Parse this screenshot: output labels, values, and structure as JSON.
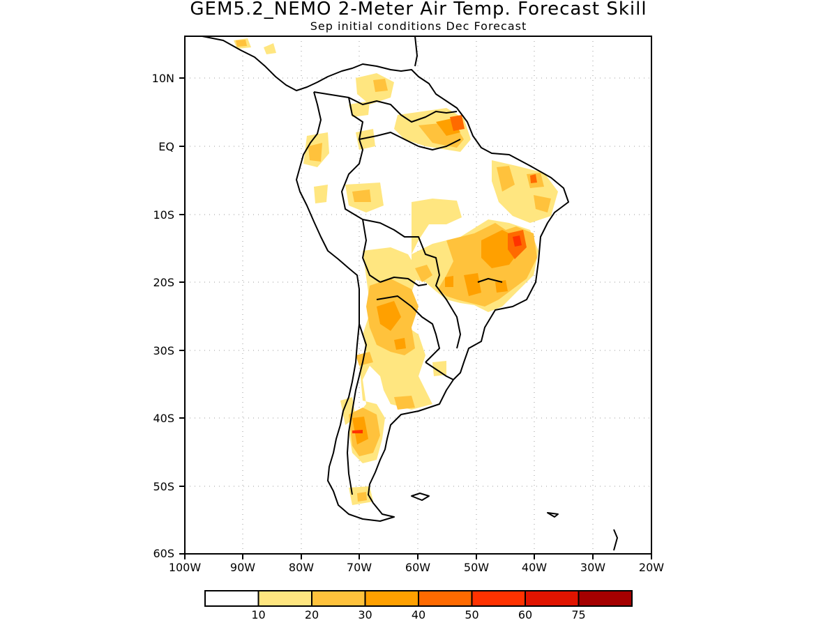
{
  "title": "GEM5.2_NEMO 2-Meter Air Temp. Forecast Skill",
  "subtitle": "Sep initial conditions  Dec Forecast",
  "axes": {
    "lat_labels": [
      "10N",
      "EQ",
      "10S",
      "20S",
      "30S",
      "40S",
      "50S",
      "60S"
    ],
    "lon_labels": [
      "100W",
      "90W",
      "80W",
      "70W",
      "60W",
      "50W",
      "40W",
      "30W",
      "20W"
    ]
  },
  "colorbar": {
    "labels": [
      "10",
      "20",
      "30",
      "40",
      "50",
      "60",
      "75"
    ],
    "colors": [
      "#ffffff",
      "#ffe680",
      "#ffc23c",
      "#ffa000",
      "#ff6a00",
      "#ff3200",
      "#e11400",
      "#a50000"
    ]
  }
}
